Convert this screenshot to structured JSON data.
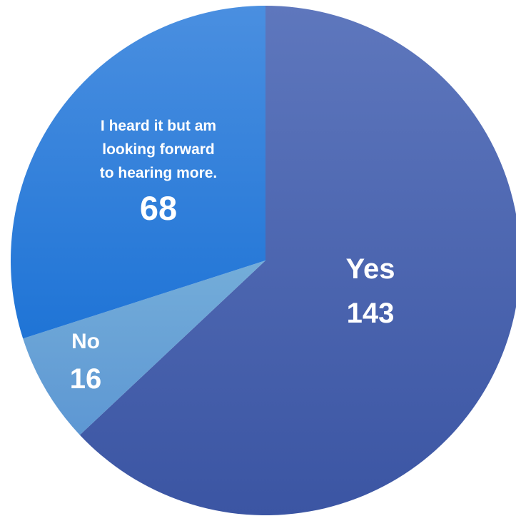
{
  "chart_data": {
    "type": "pie",
    "slices": [
      {
        "label_lines": [
          "Yes"
        ],
        "value": 143,
        "color": "#4a66b5"
      },
      {
        "label_lines": [
          "No"
        ],
        "value": 16,
        "color": "#6aa3d8"
      },
      {
        "label_lines": [
          "I heard it but am",
          "looking forward",
          "to hearing more."
        ],
        "value": 68,
        "color": "#2f7fd9"
      }
    ],
    "start_angle_deg": 0,
    "direction": "clockwise"
  }
}
